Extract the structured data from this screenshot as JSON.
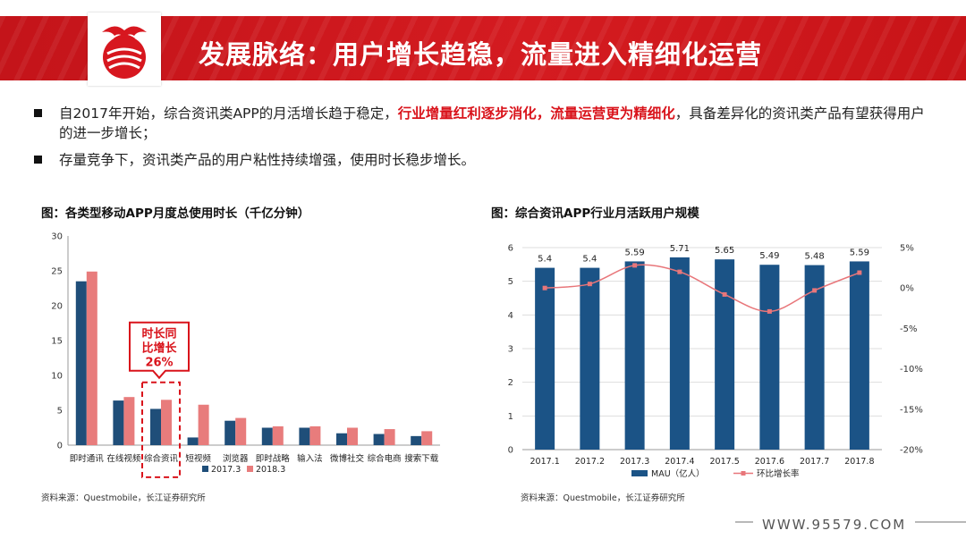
{
  "header": {
    "title": "发展脉络：用户增长趋稳，流量进入精细化运营"
  },
  "bullets": {
    "b1_pre": "自2017年开始，综合资讯类APP的月活增长趋于稳定，",
    "b1_hl": "行业增量红利逐步消化，流量运营更为精细化",
    "b1_post": "，具备差异化的资讯类产品有望获得用户的进一步增长；",
    "b2": "存量竞争下，资讯类产品的用户粘性持续增强，使用时长稳步增长。"
  },
  "colors": {
    "accent_red": "#d9131b",
    "navy": "#1f4e79",
    "salmon": "#e87c7c",
    "bar_blue": "#1b5386",
    "line_pink": "#e8767a"
  },
  "chart_data": [
    {
      "type": "bar",
      "title": "图：各类型移动APP月度总使用时长（千亿分钟）",
      "categories": [
        "即时通讯",
        "在线视频",
        "综合资讯",
        "短视频",
        "浏览器",
        "即时战略",
        "输入法",
        "微博社交",
        "综合电商",
        "搜索下载"
      ],
      "series": [
        {
          "name": "2017.3",
          "values": [
            23.5,
            6.4,
            5.2,
            1.1,
            3.5,
            2.5,
            2.5,
            1.7,
            1.6,
            1.3
          ],
          "color": "#1f4e79"
        },
        {
          "name": "2018.3",
          "values": [
            24.9,
            6.9,
            6.5,
            5.8,
            3.9,
            2.7,
            2.7,
            2.5,
            2.3,
            2.0
          ],
          "color": "#e87c7c"
        }
      ],
      "ylim": [
        0,
        30
      ],
      "yticks": [
        0,
        5,
        10,
        15,
        20,
        25,
        30
      ],
      "grid": false,
      "legend": "bottom",
      "annotation": {
        "lines": [
          "时长同",
          "比增长",
          "26%"
        ],
        "target": "综合资讯"
      },
      "source": "资料来源：Questmobile，长江证券研究所"
    },
    {
      "type": "bar",
      "title": "图：综合资讯APP行业月活跃用户规模",
      "categories": [
        "2017.1",
        "2017.2",
        "2017.3",
        "2017.4",
        "2017.5",
        "2017.6",
        "2017.7",
        "2017.8"
      ],
      "series": [
        {
          "name": "MAU（亿人）",
          "type": "bar",
          "values": [
            5.4,
            5.4,
            5.59,
            5.71,
            5.65,
            5.49,
            5.48,
            5.59
          ],
          "labels": [
            "5.4",
            "5.4",
            "5.59",
            "5.71",
            "5.65",
            "5.49",
            "5.48",
            "5.59"
          ],
          "color": "#1b5386"
        },
        {
          "name": "环比增长率",
          "type": "line",
          "axis": "right",
          "values": [
            0.0,
            0.5,
            2.8,
            2.0,
            -0.8,
            -2.9,
            -0.3,
            1.9
          ],
          "color": "#e8767a"
        }
      ],
      "ylim": [
        0,
        6
      ],
      "yticks": [
        0,
        1,
        2,
        3,
        4,
        5,
        6
      ],
      "y2lim": [
        -20,
        5
      ],
      "y2ticks": [
        5,
        0,
        -5,
        -10,
        -15,
        -20
      ],
      "y2tick_labels": [
        "5%",
        "0%",
        "-5%",
        "-10%",
        "-15%",
        "-20%"
      ],
      "grid": true,
      "legend": "bottom",
      "source": "资料来源：Questmobile，长江证券研究所"
    }
  ],
  "footer": {
    "url": "WWW.95579.COM"
  }
}
